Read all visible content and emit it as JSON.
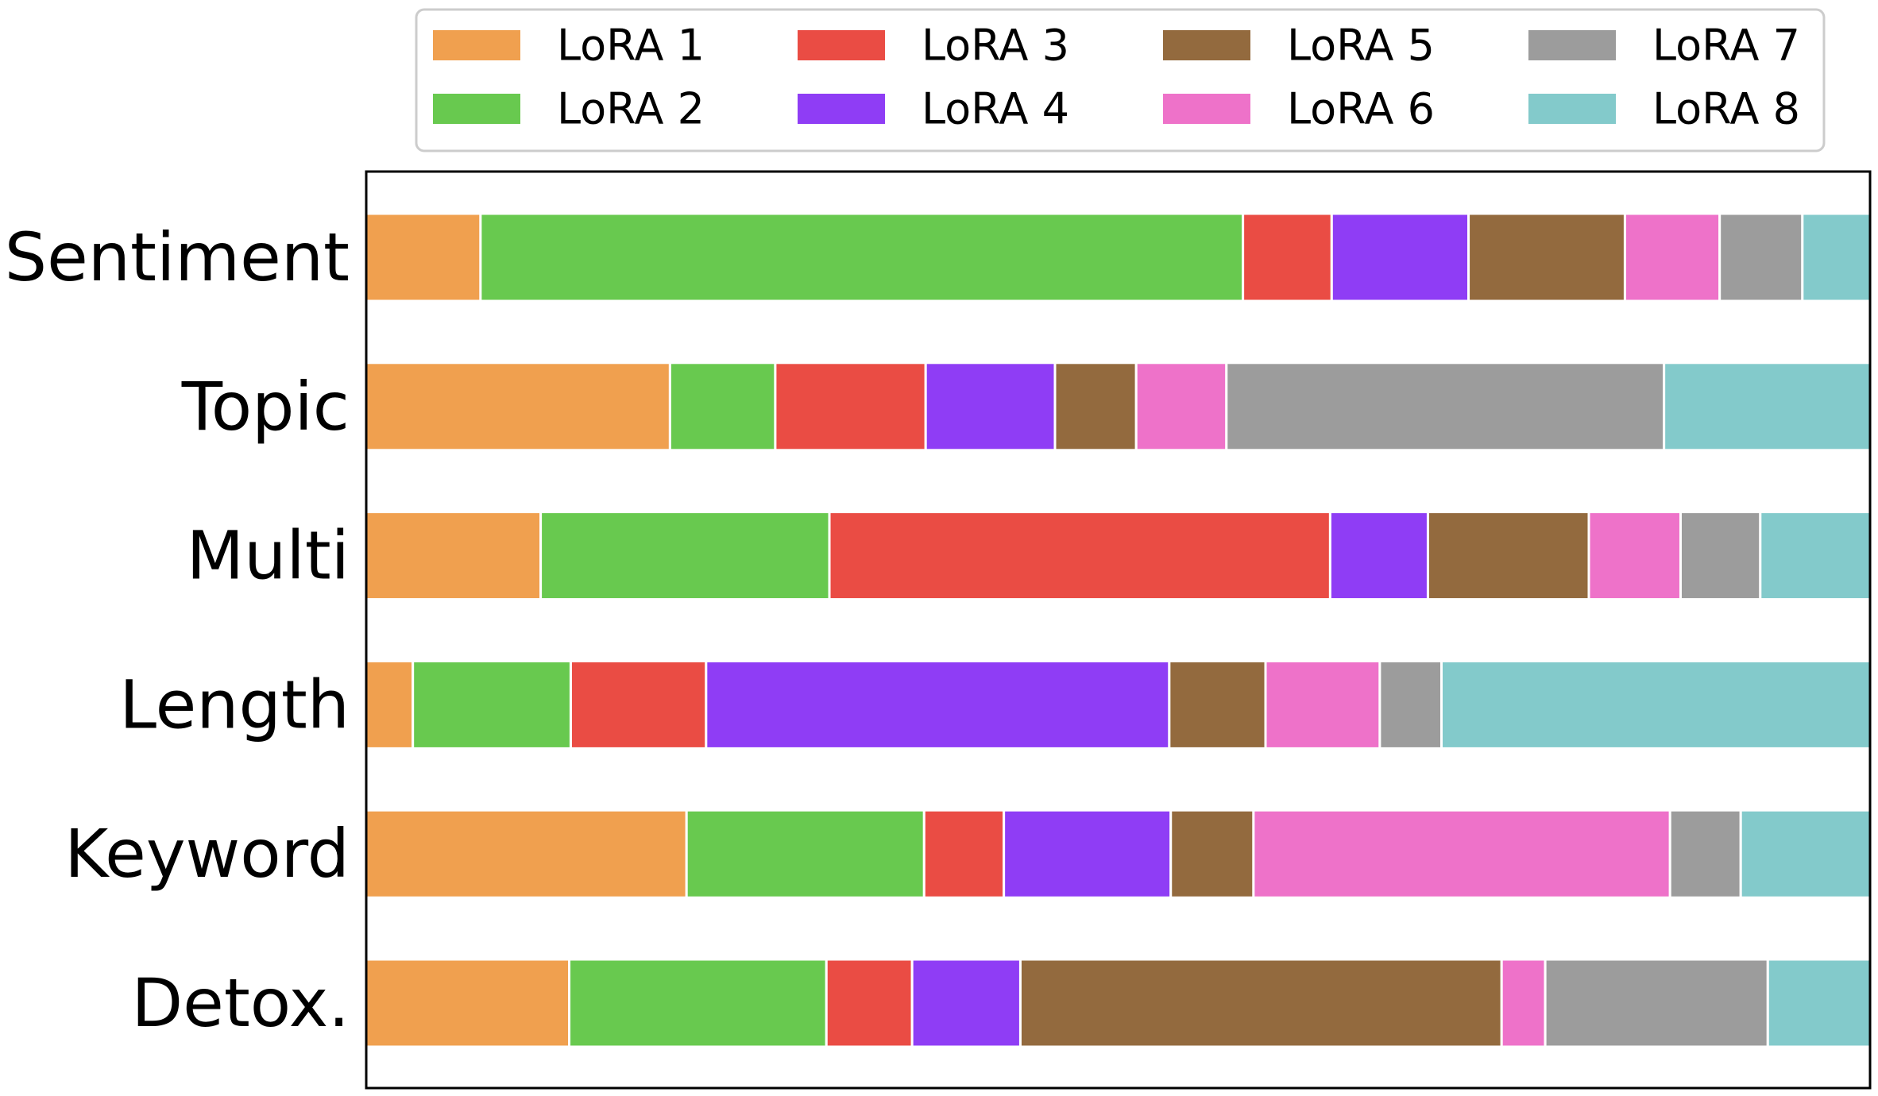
{
  "chart_data": {
    "type": "bar",
    "orientation": "horizontal",
    "stacked": true,
    "normalized": true,
    "title": "",
    "xlabel": "",
    "ylabel": "",
    "xlim": [
      0,
      1
    ],
    "grid": false,
    "x_ticks_visible": false,
    "legend_position": "top",
    "categories": [
      "Sentiment",
      "Topic",
      "Multi",
      "Length",
      "Keyword",
      "Detox."
    ],
    "series": [
      {
        "name": "LoRA 1",
        "color": "#F0A04F",
        "values": [
          0.076,
          0.202,
          0.116,
          0.031,
          0.213,
          0.135
        ]
      },
      {
        "name": "LoRA 2",
        "color": "#68C94F",
        "values": [
          0.507,
          0.07,
          0.192,
          0.105,
          0.158,
          0.171
        ]
      },
      {
        "name": "LoRA 3",
        "color": "#EA4C44",
        "values": [
          0.059,
          0.1,
          0.333,
          0.09,
          0.053,
          0.057
        ]
      },
      {
        "name": "LoRA 4",
        "color": "#8F3DF5",
        "values": [
          0.091,
          0.086,
          0.065,
          0.308,
          0.111,
          0.072
        ]
      },
      {
        "name": "LoRA 5",
        "color": "#936A3E",
        "values": [
          0.104,
          0.054,
          0.107,
          0.064,
          0.055,
          0.32
        ]
      },
      {
        "name": "LoRA 6",
        "color": "#EE72C9",
        "values": [
          0.063,
          0.06,
          0.061,
          0.076,
          0.277,
          0.029
        ]
      },
      {
        "name": "LoRA 7",
        "color": "#9C9C9C",
        "values": [
          0.055,
          0.291,
          0.053,
          0.041,
          0.047,
          0.148
        ]
      },
      {
        "name": "LoRA 8",
        "color": "#83CACB",
        "values": [
          0.045,
          0.137,
          0.073,
          0.285,
          0.086,
          0.068
        ]
      }
    ]
  }
}
